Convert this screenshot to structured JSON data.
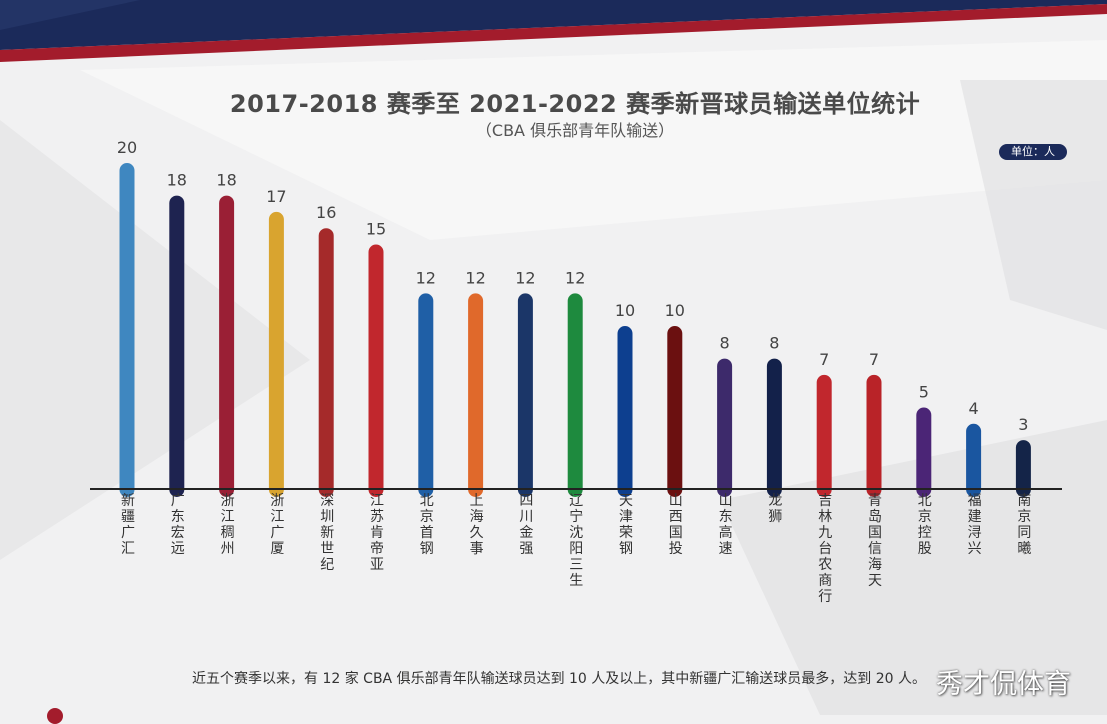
{
  "title": "2017-2018 赛季至 2021-2022 赛季新晋球员输送单位统计",
  "subtitle": "（CBA 俱乐部青年队输送）",
  "unit_badge": "单位：人",
  "footnote": "近五个赛季以来，有 12 家 CBA 俱乐部青年队输送球员达到 10 人及以上，其中新疆广汇输送球员最多，达到 20 人。",
  "watermark": "秀才侃体育",
  "colors": {
    "header_navy": "#1b2a5a",
    "header_red": "#a31c2c",
    "axis": "#222222",
    "value_text": "#444444",
    "label_text": "#333333"
  },
  "chart_data": {
    "type": "bar",
    "title": "2017-2018 赛季至 2021-2022 赛季新晋球员输送单位统计",
    "subtitle": "（CBA 俱乐部青年队输送）",
    "unit": "单位：人",
    "categories": [
      "新疆广汇",
      "广东宏远",
      "浙江稠州",
      "浙江广厦",
      "深圳新世纪",
      "江苏肯帝亚",
      "北京首钢",
      "上海久事",
      "四川金强",
      "辽宁沈阳三生",
      "天津荣钢",
      "山西国投",
      "山东高速",
      "龙狮",
      "吉林九台农商行",
      "青岛国信海天",
      "北京控股",
      "福建浔兴",
      "南京同曦"
    ],
    "values": [
      20,
      18,
      18,
      17,
      16,
      15,
      12,
      12,
      12,
      12,
      10,
      10,
      8,
      8,
      7,
      7,
      5,
      4,
      3
    ],
    "bar_colors": [
      "#3f87c0",
      "#1e2350",
      "#9a1f35",
      "#d9a42f",
      "#a52a2a",
      "#c1272d",
      "#1f5fa6",
      "#e0692b",
      "#1b3668",
      "#1e8a3e",
      "#0d3f8f",
      "#6b1010",
      "#3d2a6b",
      "#13214a",
      "#c1272d",
      "#b92328",
      "#4b2576",
      "#1a56a0",
      "#142448"
    ],
    "ylim": [
      0,
      20
    ],
    "grid": false,
    "legend": "none"
  }
}
